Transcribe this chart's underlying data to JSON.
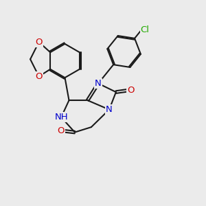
{
  "background_color": "#ebebeb",
  "bond_color": "#1a1a1a",
  "bond_lw": 1.5,
  "dbo": 0.06,
  "atom_colors": {
    "O": "#cc0000",
    "N": "#0000cc",
    "Cl": "#22aa00",
    "NH": "#0000cc"
  },
  "fs": 9.5
}
